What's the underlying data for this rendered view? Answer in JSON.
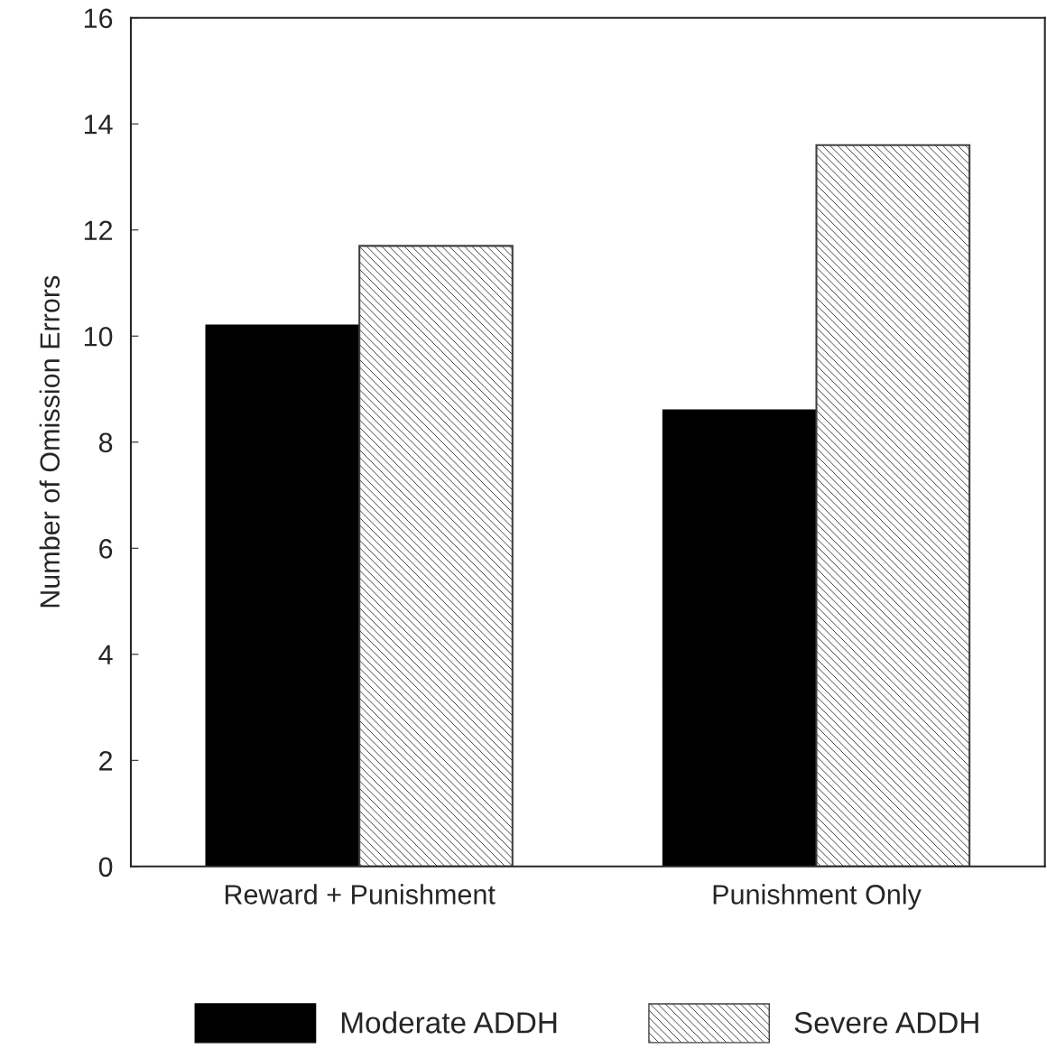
{
  "chart_data": {
    "type": "bar",
    "ylabel": "Number of Omission Errors",
    "categories": [
      "Reward + Punishment",
      "Punishment Only"
    ],
    "series": [
      {
        "name": "Moderate ADDH",
        "color": "#000000",
        "values": [
          10.2,
          8.6
        ]
      },
      {
        "name": "Severe ADDH",
        "color": "#404040",
        "values": [
          11.7,
          13.6
        ]
      }
    ],
    "ylim": [
      0,
      16
    ],
    "yticks": [
      0,
      2,
      4,
      6,
      8,
      10,
      12,
      14,
      16
    ],
    "grid": false,
    "legend": "bottom"
  }
}
